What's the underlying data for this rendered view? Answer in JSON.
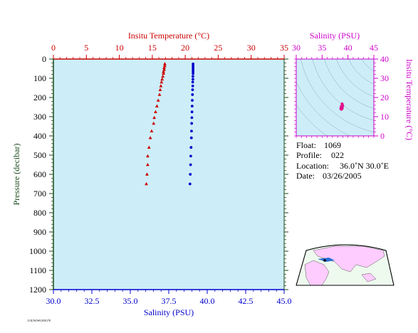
{
  "colors": {
    "temperature": "#cc0000",
    "salinity": "#0000cc",
    "pressure": "#1a4a1a",
    "ts": "#cc00cc",
    "plot_bg": "#cdeef8",
    "map_land": "#ffccff",
    "map_water": "#eefaee"
  },
  "chart_data": [
    {
      "type": "scatter",
      "xlabel_top": "Insitu Temperature (°C)",
      "xlabel_bottom": "Salinity (PSU)",
      "ylabel": "Pressure (decibar)",
      "temp_range": [
        0,
        35
      ],
      "sal_range": [
        30.0,
        45.0
      ],
      "pressure_range": [
        0,
        1200
      ],
      "temp_ticks": [
        "0",
        "5",
        "10",
        "15",
        "20",
        "25",
        "30",
        "35"
      ],
      "sal_ticks": [
        "30.0",
        "32.5",
        "35.0",
        "37.5",
        "40.0",
        "42.5",
        "45.0"
      ],
      "pressure_ticks": [
        "0",
        "100",
        "200",
        "300",
        "400",
        "500",
        "600",
        "700",
        "800",
        "900",
        "1000",
        "1100",
        "1200"
      ],
      "series": [
        {
          "name": "Insitu Temperature (°C)",
          "marker": "triangle",
          "points": [
            [
              16.9,
              25
            ],
            [
              16.9,
              35
            ],
            [
              16.8,
              45
            ],
            [
              16.8,
              55
            ],
            [
              16.7,
              65
            ],
            [
              16.7,
              75
            ],
            [
              16.6,
              90
            ],
            [
              16.5,
              105
            ],
            [
              16.4,
              120
            ],
            [
              16.3,
              140
            ],
            [
              16.2,
              160
            ],
            [
              16.1,
              185
            ],
            [
              15.9,
              215
            ],
            [
              15.7,
              245
            ],
            [
              15.5,
              275
            ],
            [
              15.3,
              305
            ],
            [
              15.2,
              335
            ],
            [
              14.9,
              375
            ],
            [
              14.7,
              410
            ],
            [
              14.5,
              460
            ],
            [
              14.3,
              505
            ],
            [
              14.3,
              550
            ],
            [
              14.2,
              600
            ],
            [
              14.1,
              650
            ]
          ]
        },
        {
          "name": "Salinity (PSU)",
          "marker": "dot",
          "points": [
            [
              39.08,
              25
            ],
            [
              39.08,
              35
            ],
            [
              39.08,
              45
            ],
            [
              39.08,
              55
            ],
            [
              39.08,
              65
            ],
            [
              39.08,
              75
            ],
            [
              39.07,
              90
            ],
            [
              39.07,
              105
            ],
            [
              39.06,
              120
            ],
            [
              39.06,
              140
            ],
            [
              39.05,
              160
            ],
            [
              39.04,
              185
            ],
            [
              39.03,
              215
            ],
            [
              39.02,
              245
            ],
            [
              39.01,
              275
            ],
            [
              39.0,
              305
            ],
            [
              38.99,
              335
            ],
            [
              38.98,
              375
            ],
            [
              38.97,
              410
            ],
            [
              38.95,
              460
            ],
            [
              38.93,
              505
            ],
            [
              38.92,
              550
            ],
            [
              38.9,
              600
            ],
            [
              38.88,
              650
            ]
          ]
        }
      ]
    },
    {
      "type": "scatter",
      "xlabel": "Salinity (PSU)",
      "ylabel": "Insitu Temperature (°C)",
      "x_range": [
        30,
        45
      ],
      "y_range": [
        0,
        40
      ],
      "x_ticks": [
        "30",
        "35",
        "40",
        "45"
      ],
      "y_ticks": [
        "0",
        "10",
        "20",
        "30",
        "40"
      ],
      "points": [
        [
          38.9,
          16.6
        ],
        [
          38.9,
          16.4
        ],
        [
          38.85,
          16.0
        ],
        [
          38.8,
          15.6
        ],
        [
          38.75,
          15.2
        ],
        [
          38.7,
          14.8
        ],
        [
          38.65,
          14.4
        ],
        [
          38.6,
          14.0
        ],
        [
          38.75,
          13.8
        ],
        [
          38.9,
          14.2
        ],
        [
          38.95,
          15.0
        ],
        [
          39.0,
          15.8
        ],
        [
          38.85,
          16.8
        ],
        [
          38.7,
          15.5
        ],
        [
          38.6,
          14.6
        ]
      ]
    }
  ],
  "info": {
    "float_label": "Float:",
    "float_value": "1069",
    "profile_label": "Profile:",
    "profile_value": "022",
    "location_label": "Location:",
    "location_value": "36.0˚N  30.0˚E",
    "date_label": "Date:",
    "date_value": "03/26/2005"
  },
  "footer_code": "113UNOWU05017E"
}
